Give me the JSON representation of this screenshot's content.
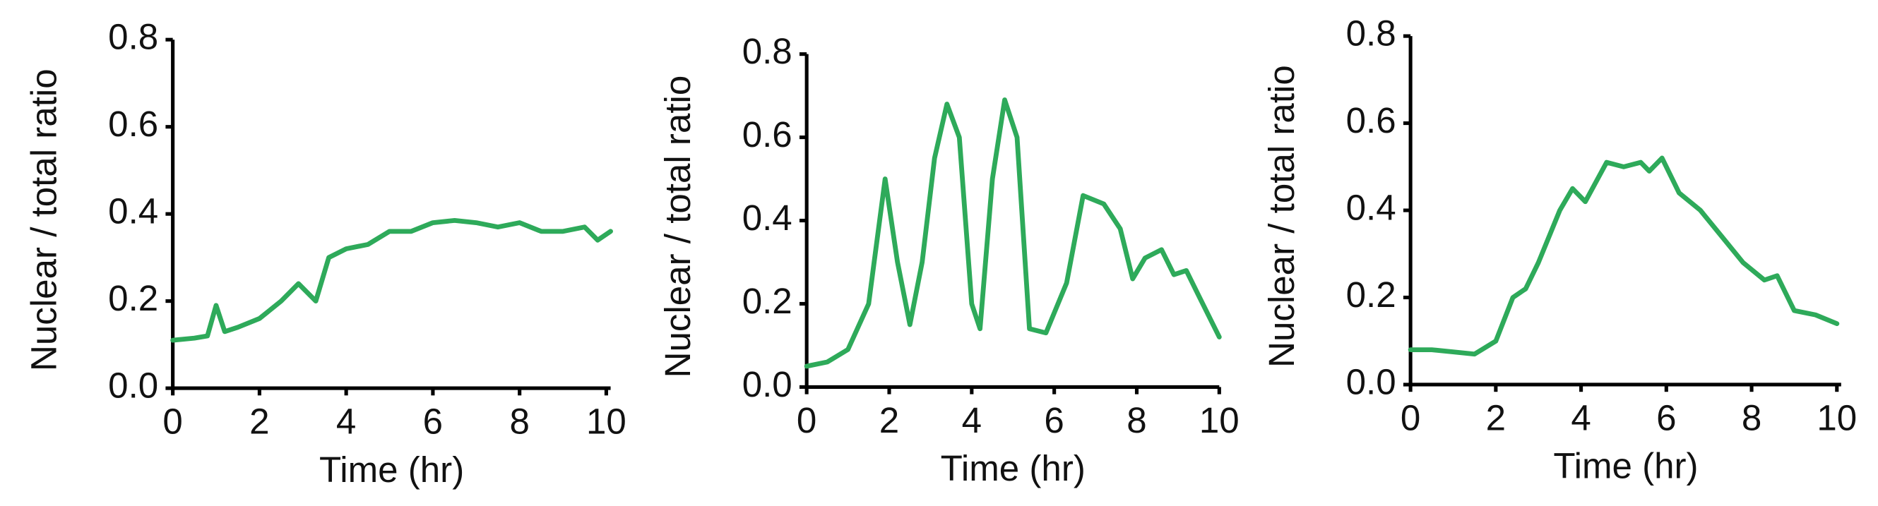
{
  "chart_data": [
    {
      "type": "line",
      "xlabel": "Time (hr)",
      "ylabel": "Nuclear / total ratio",
      "color": "#2eaa5a",
      "x": [
        0,
        0.5,
        0.8,
        1.0,
        1.2,
        1.5,
        2,
        2.5,
        2.9,
        3.3,
        3.6,
        4,
        4.5,
        5,
        5.5,
        6,
        6.5,
        7,
        7.5,
        8,
        8.5,
        9,
        9.5,
        9.8,
        10.1
      ],
      "values": [
        0.11,
        0.115,
        0.12,
        0.19,
        0.13,
        0.14,
        0.16,
        0.2,
        0.24,
        0.2,
        0.3,
        0.32,
        0.33,
        0.36,
        0.36,
        0.38,
        0.385,
        0.38,
        0.37,
        0.38,
        0.36,
        0.36,
        0.37,
        0.34,
        0.36
      ],
      "xlim": [
        0,
        10.1
      ],
      "ylim": [
        0,
        0.8
      ],
      "xticks": [
        0,
        2,
        4,
        6,
        8,
        10
      ],
      "yticks": [
        {
          "value": 0,
          "label": "0.0"
        },
        0.2,
        0.4,
        0.6,
        0.8
      ]
    },
    {
      "type": "line",
      "xlabel": "Time (hr)",
      "ylabel": "Nuclear / total ratio",
      "color": "#2eaa5a",
      "x": [
        0,
        0.5,
        1,
        1.5,
        1.9,
        2.2,
        2.5,
        2.8,
        3.1,
        3.4,
        3.7,
        4.0,
        4.2,
        4.5,
        4.8,
        5.1,
        5.4,
        5.8,
        6.3,
        6.7,
        7.2,
        7.6,
        7.9,
        8.2,
        8.6,
        8.9,
        9.2,
        9.5,
        10
      ],
      "values": [
        0.05,
        0.06,
        0.09,
        0.2,
        0.5,
        0.3,
        0.15,
        0.3,
        0.55,
        0.68,
        0.6,
        0.2,
        0.14,
        0.5,
        0.69,
        0.6,
        0.14,
        0.13,
        0.25,
        0.46,
        0.44,
        0.38,
        0.26,
        0.31,
        0.33,
        0.27,
        0.28,
        0.22,
        0.12
      ],
      "xlim": [
        0,
        10
      ],
      "ylim": [
        0,
        0.8
      ],
      "xticks": [
        0,
        2,
        4,
        6,
        8,
        10
      ],
      "yticks": [
        {
          "value": 0,
          "label": "0.0"
        },
        0.2,
        0.4,
        0.6,
        0.8
      ]
    },
    {
      "type": "line",
      "xlabel": "Time (hr)",
      "ylabel": "Nuclear / total ratio",
      "color": "#2eaa5a",
      "x": [
        0,
        0.5,
        1,
        1.5,
        2,
        2.4,
        2.7,
        3.0,
        3.5,
        3.8,
        4.1,
        4.6,
        5.0,
        5.4,
        5.6,
        5.9,
        6.3,
        6.8,
        7.3,
        7.8,
        8.3,
        8.6,
        9,
        9.5,
        10
      ],
      "values": [
        0.08,
        0.08,
        0.075,
        0.07,
        0.1,
        0.2,
        0.22,
        0.28,
        0.4,
        0.45,
        0.42,
        0.51,
        0.5,
        0.51,
        0.49,
        0.52,
        0.44,
        0.4,
        0.34,
        0.28,
        0.24,
        0.25,
        0.17,
        0.16,
        0.14
      ],
      "xlim": [
        0,
        10.1
      ],
      "ylim": [
        0,
        0.8
      ],
      "xticks": [
        0,
        2,
        4,
        6,
        8,
        10
      ],
      "yticks": [
        {
          "value": 0,
          "label": "0.0"
        },
        0.2,
        0.4,
        0.6,
        0.8
      ]
    }
  ]
}
